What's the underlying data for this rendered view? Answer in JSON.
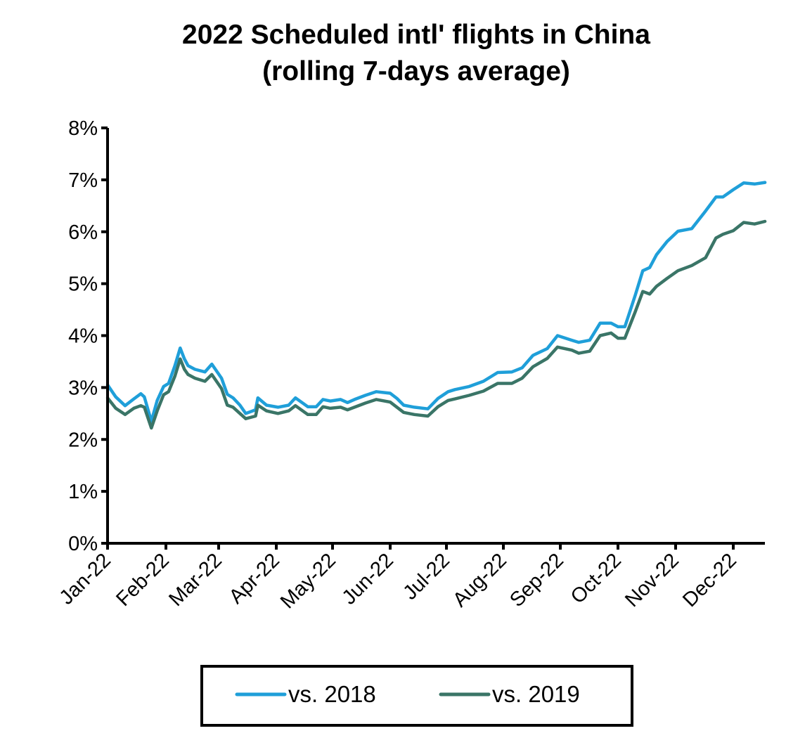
{
  "chart_data": {
    "type": "line",
    "title": [
      "2022 Scheduled intl' flights in China",
      "(rolling 7-days average)"
    ],
    "xlabel": "",
    "ylabel": "",
    "ylim": [
      0,
      8
    ],
    "y_ticks": [
      "0%",
      "1%",
      "2%",
      "3%",
      "4%",
      "5%",
      "6%",
      "7%",
      "8%"
    ],
    "x_ticks": [
      "Jan-22",
      "Feb-22",
      "Mar-22",
      "Apr-22",
      "May-22",
      "Jun-22",
      "Jul-22",
      "Aug-22",
      "Sep-22",
      "Oct-22",
      "Nov-22",
      "Dec-22"
    ],
    "x_unit": "month index (0 = Jan 1, 2022)",
    "xlim": [
      0,
      11.55
    ],
    "grid": false,
    "legend_position": "bottom",
    "series": [
      {
        "name": "vs. 2018",
        "color": "#1F9FD9",
        "x": [
          0.0,
          0.14,
          0.3,
          0.45,
          0.57,
          0.63,
          0.75,
          0.85,
          0.96,
          1.05,
          1.17,
          1.27,
          1.35,
          1.42,
          1.55,
          1.74,
          1.87,
          2.05,
          2.15,
          2.25,
          2.37,
          2.47,
          2.64,
          2.68,
          2.83,
          3.03,
          3.22,
          3.34,
          3.56,
          3.71,
          3.83,
          3.96,
          4.14,
          4.26,
          4.38,
          4.57,
          4.76,
          5.0,
          5.12,
          5.24,
          5.43,
          5.67,
          5.85,
          6.03,
          6.15,
          6.4,
          6.65,
          6.9,
          7.15,
          7.33,
          7.52,
          7.77,
          7.95,
          8.2,
          8.32,
          8.51,
          8.69,
          8.88,
          9.0,
          9.12,
          9.3,
          9.43,
          9.55,
          9.67,
          9.85,
          10.04,
          10.28,
          10.52,
          10.7,
          10.82,
          11.0,
          11.18,
          11.37,
          11.55
        ],
        "values": [
          3.05,
          2.82,
          2.65,
          2.78,
          2.88,
          2.82,
          2.35,
          2.75,
          3.02,
          3.08,
          3.42,
          3.76,
          3.55,
          3.42,
          3.35,
          3.3,
          3.45,
          3.18,
          2.87,
          2.8,
          2.66,
          2.5,
          2.57,
          2.8,
          2.66,
          2.62,
          2.66,
          2.8,
          2.63,
          2.63,
          2.77,
          2.74,
          2.77,
          2.71,
          2.77,
          2.85,
          2.92,
          2.89,
          2.79,
          2.66,
          2.62,
          2.59,
          2.79,
          2.92,
          2.96,
          3.02,
          3.12,
          3.29,
          3.3,
          3.38,
          3.62,
          3.75,
          4.0,
          3.91,
          3.87,
          3.91,
          4.24,
          4.24,
          4.17,
          4.17,
          4.78,
          5.25,
          5.31,
          5.56,
          5.81,
          6.01,
          6.06,
          6.4,
          6.67,
          6.67,
          6.81,
          6.94,
          6.92,
          6.95
        ]
      },
      {
        "name": "vs. 2019",
        "color": "#3A7567",
        "x": [
          0.0,
          0.14,
          0.3,
          0.45,
          0.57,
          0.63,
          0.75,
          0.85,
          0.96,
          1.05,
          1.17,
          1.27,
          1.35,
          1.42,
          1.55,
          1.74,
          1.87,
          2.05,
          2.15,
          2.25,
          2.37,
          2.47,
          2.64,
          2.68,
          2.83,
          3.03,
          3.22,
          3.34,
          3.56,
          3.71,
          3.83,
          3.96,
          4.14,
          4.26,
          4.38,
          4.57,
          4.76,
          5.0,
          5.12,
          5.24,
          5.43,
          5.67,
          5.85,
          6.03,
          6.15,
          6.4,
          6.65,
          6.9,
          7.15,
          7.33,
          7.52,
          7.77,
          7.95,
          8.2,
          8.32,
          8.51,
          8.69,
          8.88,
          9.0,
          9.12,
          9.3,
          9.43,
          9.55,
          9.67,
          9.85,
          10.04,
          10.28,
          10.52,
          10.7,
          10.82,
          11.0,
          11.18,
          11.37,
          11.55
        ],
        "values": [
          2.8,
          2.6,
          2.48,
          2.6,
          2.65,
          2.62,
          2.22,
          2.55,
          2.86,
          2.92,
          3.22,
          3.55,
          3.35,
          3.25,
          3.18,
          3.12,
          3.25,
          2.98,
          2.66,
          2.62,
          2.5,
          2.4,
          2.45,
          2.66,
          2.55,
          2.5,
          2.55,
          2.65,
          2.48,
          2.48,
          2.63,
          2.6,
          2.62,
          2.57,
          2.62,
          2.7,
          2.77,
          2.72,
          2.62,
          2.52,
          2.48,
          2.45,
          2.63,
          2.75,
          2.78,
          2.85,
          2.93,
          3.08,
          3.08,
          3.18,
          3.4,
          3.56,
          3.78,
          3.72,
          3.66,
          3.7,
          4.0,
          4.05,
          3.95,
          3.95,
          4.46,
          4.85,
          4.8,
          4.95,
          5.1,
          5.25,
          5.35,
          5.5,
          5.88,
          5.95,
          6.02,
          6.18,
          6.15,
          6.2
        ]
      }
    ]
  }
}
